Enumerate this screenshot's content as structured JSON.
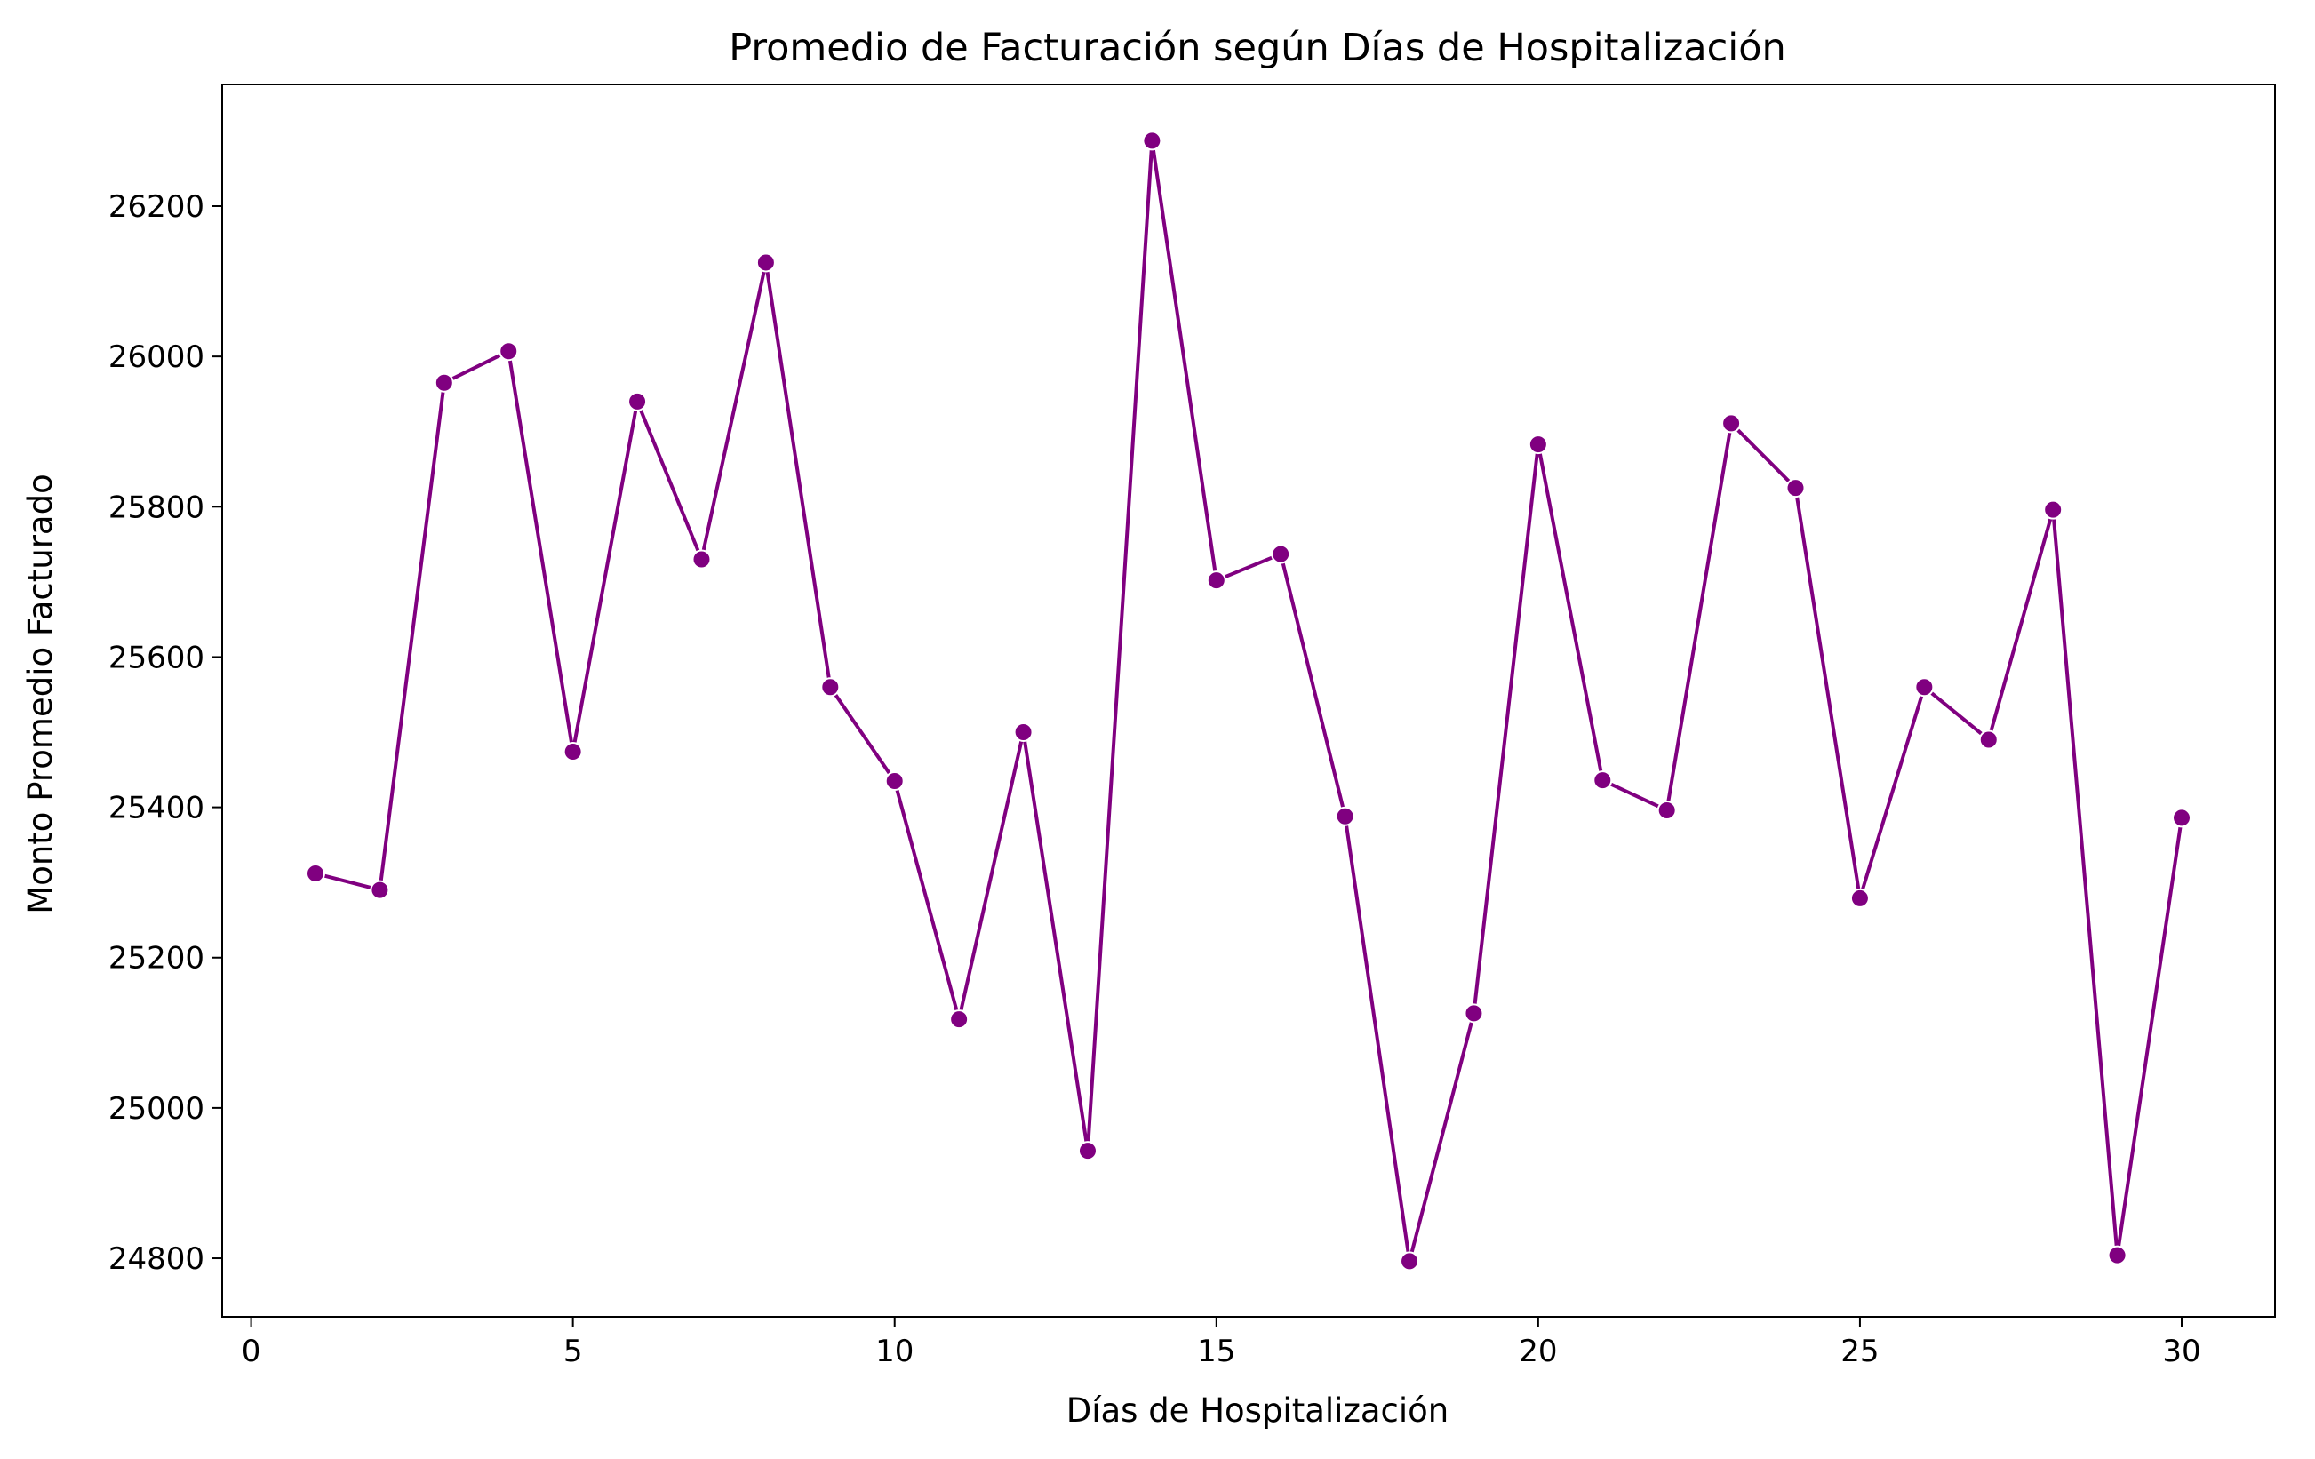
{
  "chart_data": {
    "type": "line",
    "title": "Promedio de Facturación según Días de Hospitalización",
    "xlabel": "Días de Hospitalización",
    "ylabel": "Monto Promedio Facturado",
    "xlim": [
      -0.45,
      31.45
    ],
    "ylim": [
      24722,
      26362
    ],
    "xticks": [
      0,
      5,
      10,
      15,
      20,
      25,
      30
    ],
    "yticks": [
      24800,
      25000,
      25200,
      25400,
      25600,
      25800,
      26000,
      26200
    ],
    "xtick_labels": [
      "0",
      "5",
      "10",
      "15",
      "20",
      "25",
      "30"
    ],
    "ytick_labels": [
      "24800",
      "25000",
      "25200",
      "25400",
      "25600",
      "25800",
      "26000",
      "26200"
    ],
    "grid": false,
    "color": "#800080",
    "series": [
      {
        "x": [
          1,
          2,
          3,
          4,
          5,
          6,
          7,
          8,
          9,
          10,
          11,
          12,
          13,
          14,
          15,
          16,
          17,
          18,
          19,
          20,
          21,
          22,
          23,
          24,
          25,
          26,
          27,
          28,
          29,
          30
        ],
        "values": [
          25312,
          25290,
          25965,
          26007,
          25474,
          25940,
          25730,
          26125,
          25560,
          25435,
          25118,
          25500,
          24943,
          26287,
          25702,
          25737,
          25388,
          24796,
          25126,
          25883,
          25436,
          25396,
          25911,
          25825,
          25279,
          25560,
          25490,
          25796,
          24804,
          25386
        ]
      }
    ]
  }
}
